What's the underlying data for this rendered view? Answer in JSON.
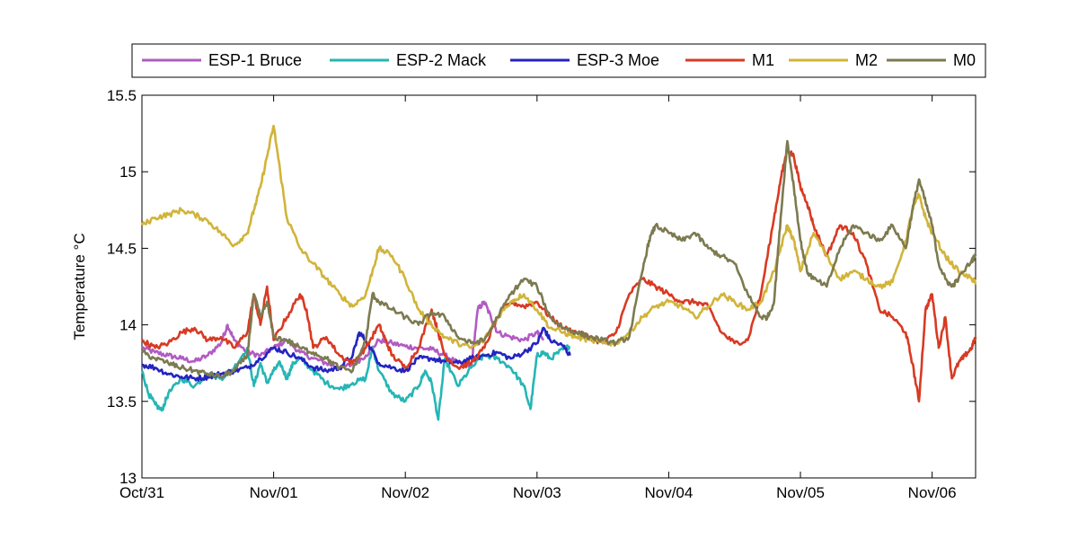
{
  "chart_data": {
    "type": "line",
    "ylabel": "Temperature °C",
    "xlabel": "",
    "ylim": [
      13,
      15.5
    ],
    "yticks": [
      "13",
      "13.5",
      "14",
      "14.5",
      "15",
      "15.5"
    ],
    "xlim": [
      0,
      6.33
    ],
    "xticks": [
      {
        "x": 0,
        "label": "Oct/31"
      },
      {
        "x": 1,
        "label": "Nov/01"
      },
      {
        "x": 2,
        "label": "Nov/02"
      },
      {
        "x": 3,
        "label": "Nov/03"
      },
      {
        "x": 4,
        "label": "Nov/04"
      },
      {
        "x": 5,
        "label": "Nov/05"
      },
      {
        "x": 6,
        "label": "Nov/06"
      }
    ],
    "grid": false,
    "legend_position": "top",
    "series": [
      {
        "name": "ESP-1 Bruce",
        "color": "#b15bc3",
        "x": [
          0,
          0.1,
          0.2,
          0.3,
          0.4,
          0.5,
          0.6,
          0.65,
          0.7,
          0.8,
          0.9,
          1.0,
          1.1,
          1.2,
          1.3,
          1.4,
          1.5,
          1.6,
          1.7,
          1.8,
          1.9,
          2.0,
          2.1,
          2.2,
          2.3,
          2.4,
          2.5,
          2.55,
          2.6,
          2.65,
          2.7,
          2.8,
          2.9,
          3.0,
          3.05
        ],
        "y": [
          13.85,
          13.82,
          13.8,
          13.78,
          13.76,
          13.8,
          13.88,
          14.0,
          13.9,
          13.82,
          13.8,
          13.85,
          13.9,
          13.82,
          13.78,
          13.75,
          13.72,
          13.74,
          13.8,
          13.9,
          13.88,
          13.86,
          13.85,
          13.84,
          13.8,
          13.75,
          13.72,
          14.1,
          14.15,
          14.05,
          13.95,
          13.92,
          13.9,
          13.95,
          13.9
        ]
      },
      {
        "name": "ESP-2 Mack",
        "color": "#26b5b5",
        "x": [
          0,
          0.05,
          0.1,
          0.15,
          0.2,
          0.3,
          0.4,
          0.5,
          0.6,
          0.7,
          0.8,
          0.85,
          0.9,
          0.95,
          1.0,
          1.05,
          1.1,
          1.15,
          1.2,
          1.3,
          1.4,
          1.5,
          1.6,
          1.7,
          1.75,
          1.8,
          1.9,
          2.0,
          2.1,
          2.15,
          2.2,
          2.25,
          2.3,
          2.4,
          2.5,
          2.6,
          2.7,
          2.8,
          2.9,
          2.95,
          3.0,
          3.05,
          3.1,
          3.2,
          3.25
        ],
        "y": [
          13.7,
          13.55,
          13.48,
          13.44,
          13.55,
          13.65,
          13.6,
          13.68,
          13.65,
          13.72,
          13.85,
          13.6,
          13.75,
          13.62,
          13.7,
          13.75,
          13.65,
          13.75,
          13.78,
          13.7,
          13.62,
          13.58,
          13.62,
          13.65,
          13.85,
          13.7,
          13.55,
          13.5,
          13.6,
          13.7,
          13.62,
          13.38,
          13.78,
          13.6,
          13.72,
          13.8,
          13.78,
          13.72,
          13.6,
          13.45,
          13.8,
          13.82,
          13.78,
          13.84,
          13.86
        ]
      },
      {
        "name": "ESP-3 Moe",
        "color": "#2424c0",
        "x": [
          0,
          0.1,
          0.2,
          0.3,
          0.4,
          0.5,
          0.6,
          0.7,
          0.8,
          0.9,
          1.0,
          1.1,
          1.2,
          1.3,
          1.4,
          1.5,
          1.6,
          1.65,
          1.7,
          1.8,
          1.9,
          2.0,
          2.1,
          2.2,
          2.3,
          2.4,
          2.5,
          2.6,
          2.7,
          2.8,
          2.9,
          3.0,
          3.05,
          3.1,
          3.2,
          3.25
        ],
        "y": [
          13.74,
          13.72,
          13.68,
          13.66,
          13.65,
          13.66,
          13.68,
          13.7,
          13.72,
          13.78,
          13.85,
          13.82,
          13.78,
          13.72,
          13.7,
          13.72,
          13.8,
          13.95,
          13.9,
          13.75,
          13.72,
          13.7,
          13.78,
          13.78,
          13.76,
          13.75,
          13.78,
          13.8,
          13.82,
          13.78,
          13.82,
          13.88,
          13.98,
          13.9,
          13.86,
          13.8
        ]
      },
      {
        "name": "M1",
        "color": "#d83a23",
        "x": [
          0,
          0.1,
          0.2,
          0.3,
          0.4,
          0.5,
          0.6,
          0.7,
          0.8,
          0.85,
          0.9,
          0.95,
          1.0,
          1.1,
          1.2,
          1.25,
          1.3,
          1.4,
          1.5,
          1.6,
          1.7,
          1.8,
          1.85,
          1.9,
          2.0,
          2.1,
          2.2,
          2.25,
          2.3,
          2.4,
          2.5,
          2.6,
          2.7,
          2.8,
          2.9,
          3.0,
          3.1,
          3.2,
          3.3,
          3.4,
          3.5,
          3.6,
          3.7,
          3.8,
          3.9,
          4.0,
          4.1,
          4.2,
          4.3,
          4.4,
          4.5,
          4.6,
          4.7,
          4.8,
          4.85,
          4.9,
          4.95,
          5.0,
          5.05,
          5.1,
          5.2,
          5.3,
          5.4,
          5.5,
          5.6,
          5.7,
          5.8,
          5.85,
          5.9,
          5.95,
          6.0,
          6.05,
          6.1,
          6.15,
          6.2,
          6.25,
          6.3,
          6.33
        ],
        "y": [
          13.9,
          13.85,
          13.88,
          13.95,
          13.98,
          13.9,
          13.92,
          13.85,
          13.95,
          14.2,
          14.0,
          14.25,
          13.9,
          14.05,
          14.2,
          14.1,
          13.85,
          13.92,
          13.8,
          13.75,
          13.85,
          14.0,
          13.9,
          13.8,
          13.72,
          13.85,
          14.1,
          13.95,
          13.8,
          13.72,
          13.75,
          13.85,
          14.05,
          14.15,
          14.12,
          14.15,
          14.05,
          13.98,
          13.95,
          13.92,
          13.88,
          13.95,
          14.2,
          14.3,
          14.25,
          14.2,
          14.15,
          14.15,
          14.12,
          13.95,
          13.88,
          13.9,
          14.2,
          14.7,
          14.95,
          15.15,
          15.1,
          14.9,
          14.8,
          14.65,
          14.45,
          14.65,
          14.6,
          14.4,
          14.1,
          14.05,
          13.95,
          13.75,
          13.5,
          14.1,
          14.2,
          13.85,
          14.05,
          13.65,
          13.75,
          13.8,
          13.85,
          13.92
        ]
      },
      {
        "name": "M2",
        "color": "#d1b43a",
        "x": [
          0,
          0.1,
          0.2,
          0.3,
          0.4,
          0.5,
          0.6,
          0.7,
          0.8,
          0.85,
          0.9,
          0.95,
          1.0,
          1.05,
          1.1,
          1.2,
          1.3,
          1.4,
          1.5,
          1.6,
          1.7,
          1.75,
          1.8,
          1.9,
          2.0,
          2.1,
          2.2,
          2.3,
          2.4,
          2.5,
          2.6,
          2.7,
          2.8,
          2.9,
          3.0,
          3.1,
          3.2,
          3.3,
          3.4,
          3.5,
          3.6,
          3.7,
          3.8,
          3.9,
          4.0,
          4.1,
          4.2,
          4.3,
          4.4,
          4.5,
          4.6,
          4.7,
          4.8,
          4.85,
          4.9,
          4.95,
          5.0,
          5.1,
          5.2,
          5.3,
          5.4,
          5.5,
          5.6,
          5.7,
          5.8,
          5.85,
          5.9,
          5.95,
          6.0,
          6.1,
          6.2,
          6.3,
          6.33
        ],
        "y": [
          14.65,
          14.7,
          14.72,
          14.75,
          14.72,
          14.68,
          14.6,
          14.52,
          14.6,
          14.75,
          14.9,
          15.1,
          15.3,
          15.0,
          14.7,
          14.5,
          14.4,
          14.3,
          14.2,
          14.12,
          14.2,
          14.35,
          14.5,
          14.45,
          14.3,
          14.1,
          14.0,
          13.92,
          13.88,
          13.85,
          13.9,
          14.05,
          14.15,
          14.2,
          14.1,
          13.98,
          13.95,
          13.92,
          13.9,
          13.88,
          13.88,
          13.95,
          14.05,
          14.12,
          14.15,
          14.12,
          14.05,
          14.12,
          14.2,
          14.15,
          14.1,
          14.15,
          14.35,
          14.5,
          14.65,
          14.55,
          14.35,
          14.6,
          14.45,
          14.3,
          14.35,
          14.3,
          14.25,
          14.28,
          14.55,
          14.75,
          14.85,
          14.7,
          14.6,
          14.45,
          14.35,
          14.3,
          14.28
        ]
      },
      {
        "name": "M0",
        "color": "#7c7a4f",
        "x": [
          0,
          0.1,
          0.2,
          0.3,
          0.4,
          0.5,
          0.6,
          0.7,
          0.8,
          0.85,
          0.9,
          0.95,
          1.0,
          1.1,
          1.2,
          1.3,
          1.4,
          1.5,
          1.6,
          1.7,
          1.75,
          1.8,
          1.9,
          2.0,
          2.1,
          2.2,
          2.3,
          2.4,
          2.5,
          2.6,
          2.7,
          2.8,
          2.9,
          3.0,
          3.1,
          3.2,
          3.3,
          3.4,
          3.5,
          3.6,
          3.7,
          3.8,
          3.85,
          3.9,
          4.0,
          4.1,
          4.2,
          4.3,
          4.4,
          4.5,
          4.6,
          4.7,
          4.75,
          4.8,
          4.85,
          4.9,
          4.95,
          5.0,
          5.05,
          5.1,
          5.2,
          5.3,
          5.4,
          5.5,
          5.6,
          5.7,
          5.8,
          5.85,
          5.9,
          5.95,
          6.0,
          6.05,
          6.1,
          6.15,
          6.2,
          6.3,
          6.33
        ],
        "y": [
          13.82,
          13.78,
          13.75,
          13.72,
          13.7,
          13.68,
          13.66,
          13.7,
          13.8,
          14.2,
          14.05,
          14.15,
          13.92,
          13.9,
          13.85,
          13.82,
          13.78,
          13.72,
          13.7,
          13.9,
          14.2,
          14.15,
          14.1,
          14.05,
          14.0,
          14.08,
          14.05,
          13.92,
          13.88,
          13.9,
          14.05,
          14.2,
          14.3,
          14.25,
          14.05,
          13.98,
          13.95,
          13.92,
          13.9,
          13.88,
          13.92,
          14.35,
          14.55,
          14.65,
          14.6,
          14.55,
          14.6,
          14.5,
          14.45,
          14.4,
          14.2,
          14.05,
          14.05,
          14.15,
          14.7,
          15.2,
          14.9,
          14.55,
          14.35,
          14.3,
          14.25,
          14.5,
          14.65,
          14.6,
          14.55,
          14.65,
          14.5,
          14.75,
          14.95,
          14.8,
          14.65,
          14.4,
          14.3,
          14.25,
          14.3,
          14.42,
          14.45
        ]
      }
    ]
  }
}
